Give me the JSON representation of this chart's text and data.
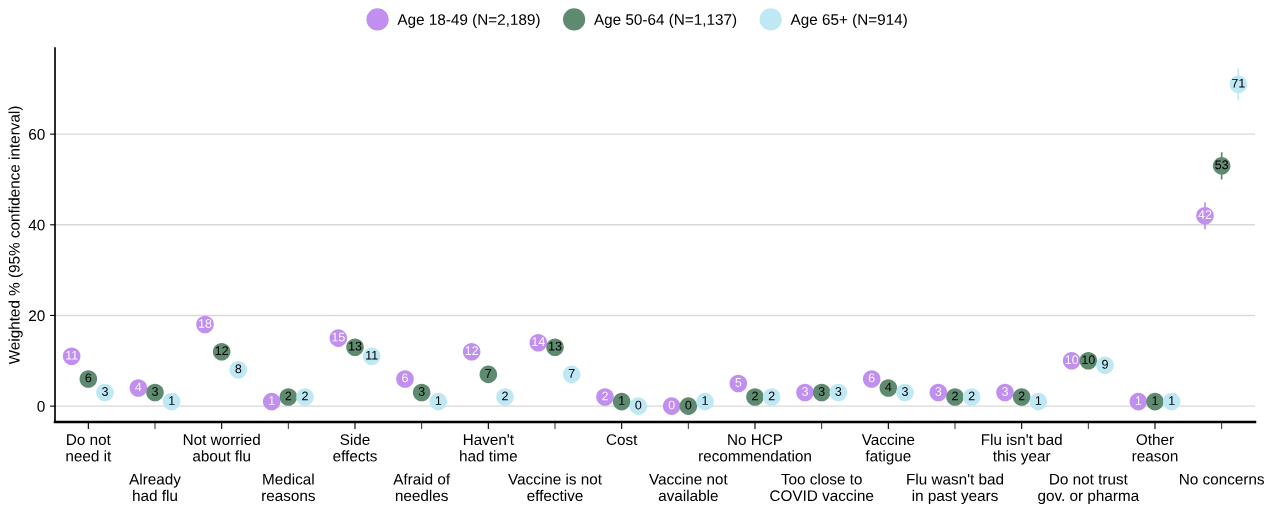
{
  "chart_data": {
    "type": "scatter",
    "ylabel": "Weighted % (95% confidence interval)",
    "categories": [
      "Do not\nneed it",
      "Already\nhad flu",
      "Not worried\nabout flu",
      "Medical\nreasons",
      "Side\neffects",
      "Afraid of\nneedles",
      "Haven't\nhad time",
      "Vaccine is not\neffective",
      "Cost",
      "Vaccine not\navailable",
      "No HCP\nrecommendation",
      "Too close to\nCOVID vaccine",
      "Vaccine\nfatigue",
      "Flu wasn't bad\nin past years",
      "Flu isn't bad\nthis year",
      "Do not trust\ngov. or pharma",
      "Other\nreason",
      "No concerns"
    ],
    "series": [
      {
        "name": "Age 18-49 (N=2,189)",
        "color": "#c08ff0",
        "values": [
          11,
          4,
          18,
          1,
          15,
          6,
          12,
          14,
          2,
          0,
          5,
          3,
          6,
          3,
          3,
          10,
          1,
          42
        ],
        "errors": [
          null,
          null,
          null,
          null,
          null,
          null,
          null,
          null,
          null,
          null,
          null,
          null,
          null,
          null,
          null,
          null,
          null,
          3
        ]
      },
      {
        "name": "Age 50-64 (N=1,137)",
        "color": "#5e8a70",
        "values": [
          6,
          3,
          12,
          2,
          13,
          3,
          7,
          13,
          1,
          0,
          2,
          3,
          4,
          2,
          2,
          10,
          1,
          53
        ],
        "errors": [
          null,
          null,
          null,
          null,
          null,
          null,
          null,
          null,
          null,
          null,
          null,
          null,
          null,
          null,
          null,
          null,
          null,
          3
        ]
      },
      {
        "name": "Age 65+ (N=914)",
        "color": "#bfe8f5",
        "values": [
          3,
          1,
          8,
          2,
          11,
          1,
          2,
          7,
          0,
          1,
          2,
          3,
          3,
          2,
          1,
          9,
          1,
          71
        ],
        "errors": [
          null,
          null,
          null,
          null,
          null,
          null,
          null,
          null,
          null,
          null,
          null,
          null,
          null,
          null,
          null,
          null,
          null,
          3.5
        ]
      }
    ],
    "ylim": [
      -3.5,
      79
    ],
    "yticks": [
      0,
      20,
      40,
      60
    ],
    "grid": "y",
    "legend": "top",
    "marker": "circle",
    "data_labels": true
  }
}
